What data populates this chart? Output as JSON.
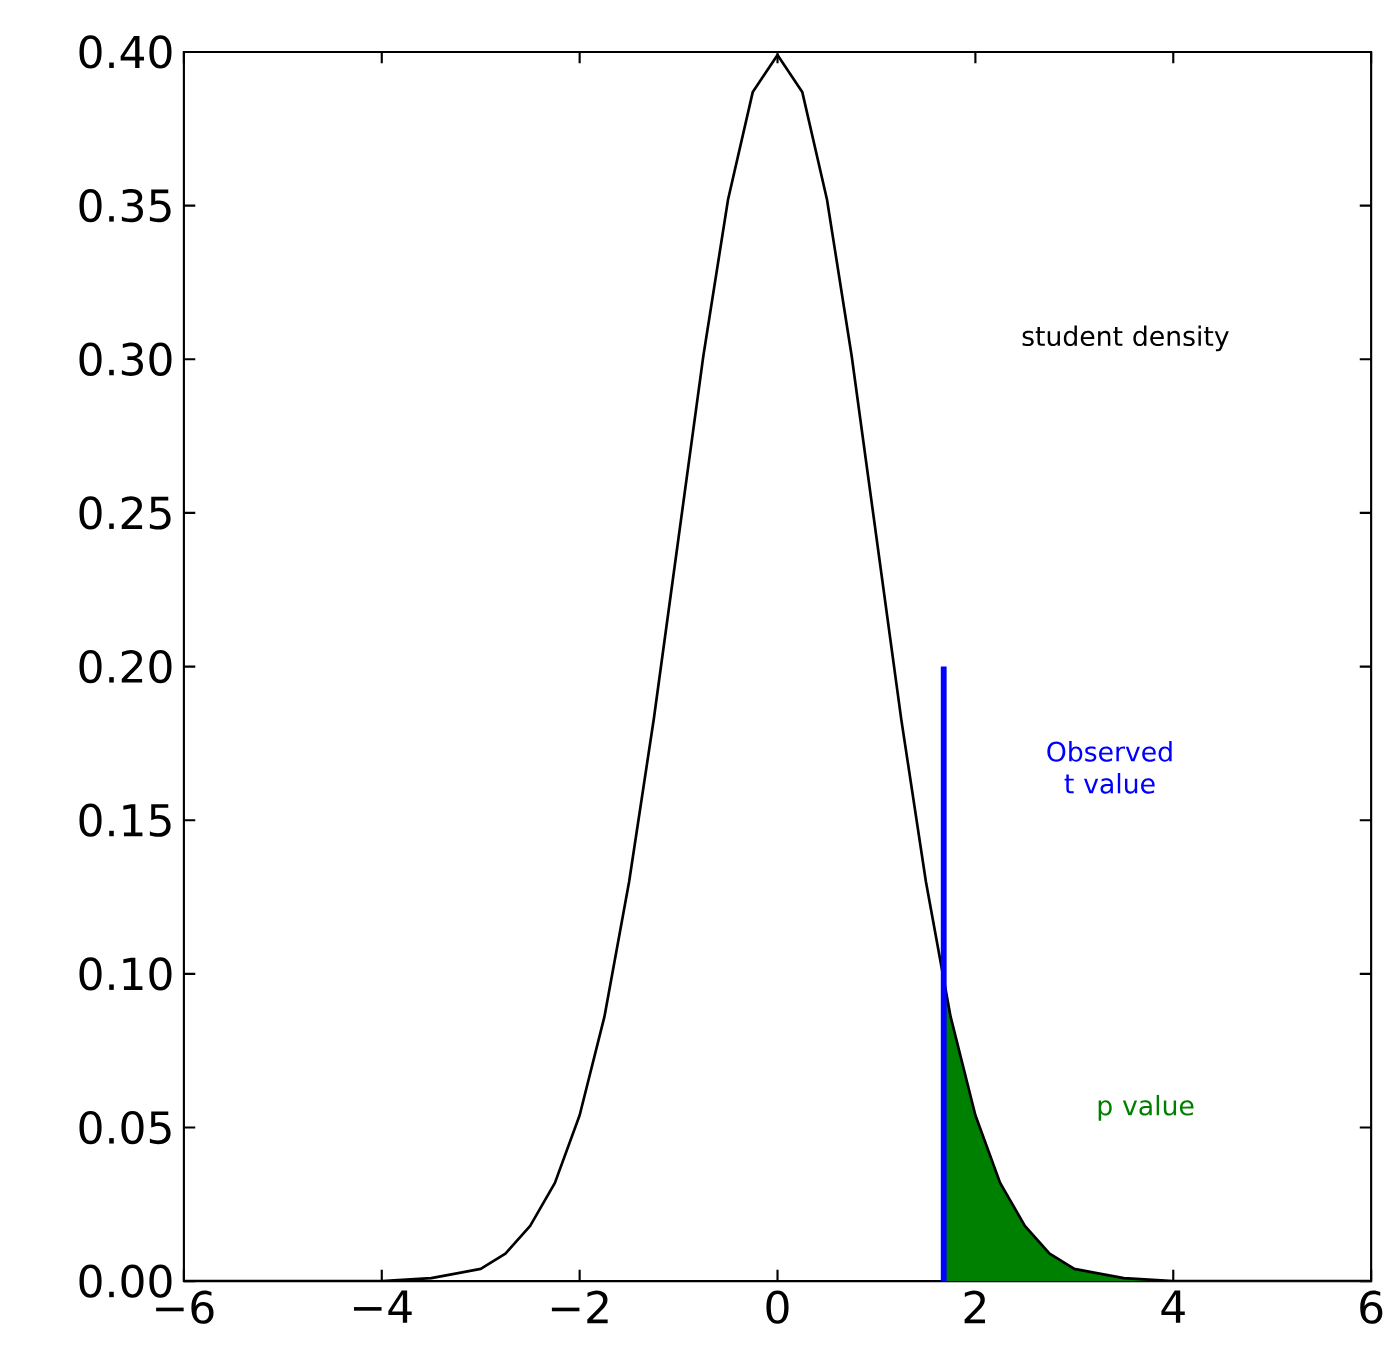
{
  "chart_data": {
    "type": "line",
    "xlim": [
      -6,
      6
    ],
    "ylim": [
      0,
      0.4
    ],
    "xticks": [
      {
        "value": -6,
        "label": "−6"
      },
      {
        "value": -4,
        "label": "−4"
      },
      {
        "value": -2,
        "label": "−2"
      },
      0,
      2,
      4,
      6
    ],
    "yticks": [
      {
        "value": 0,
        "label": "0.00"
      },
      0.05,
      {
        "value": 0.1,
        "label": "0.10"
      },
      0.15,
      {
        "value": 0.2,
        "label": "0.20"
      },
      0.25,
      {
        "value": 0.3,
        "label": "0.30"
      },
      0.35,
      {
        "value": 0.4,
        "label": "0.40"
      }
    ],
    "grid": false,
    "legend": false,
    "series": [
      {
        "name": "student density",
        "color": "#000000",
        "x": [
          -6,
          -5,
          -4.5,
          -4,
          -3.5,
          -3,
          -2.75,
          -2.5,
          -2.25,
          -2,
          -1.75,
          -1.5,
          -1.25,
          -1,
          -0.75,
          -0.5,
          -0.25,
          0,
          0.25,
          0.5,
          0.75,
          1,
          1.25,
          1.5,
          1.75,
          2,
          2.25,
          2.5,
          2.75,
          3,
          3.5,
          4,
          4.5,
          5,
          6
        ],
        "values": [
          0,
          0,
          0,
          0,
          0.001,
          0.004,
          0.009,
          0.018,
          0.032,
          0.054,
          0.086,
          0.13,
          0.183,
          0.242,
          0.301,
          0.352,
          0.387,
          0.399,
          0.387,
          0.352,
          0.301,
          0.242,
          0.183,
          0.13,
          0.086,
          0.054,
          0.032,
          0.018,
          0.009,
          0.004,
          0.001,
          0,
          0,
          0,
          0
        ]
      },
      {
        "name": "Observed t value",
        "color": "#0000ff",
        "x": [
          1.68,
          1.68
        ],
        "values": [
          0,
          0.2
        ]
      },
      {
        "name": "p value",
        "type": "area",
        "color": "#008000",
        "x": [
          1.68,
          1.75,
          2,
          2.25,
          2.5,
          2.75,
          3,
          3.5,
          4,
          4.5,
          5,
          6
        ],
        "values": [
          0.097,
          0.086,
          0.054,
          0.032,
          0.018,
          0.009,
          0.004,
          0.001,
          0,
          0,
          0,
          0
        ]
      }
    ]
  }
}
